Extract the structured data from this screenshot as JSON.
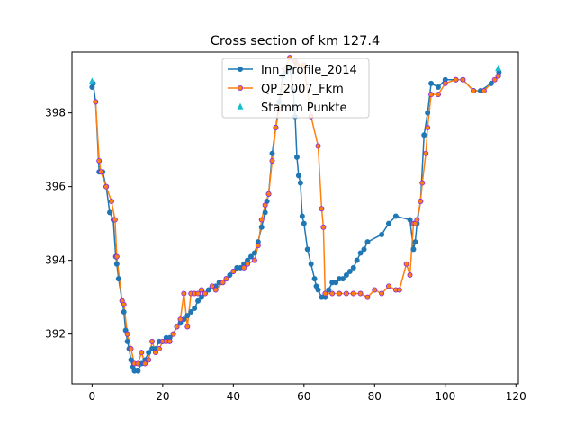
{
  "chart_data": {
    "type": "line",
    "title": "Cross section of km 127.4",
    "xlabel": "",
    "ylabel": "",
    "xlim": [
      -5.7,
      120.7
    ],
    "ylim": [
      390.65,
      399.65
    ],
    "xticks": [
      0,
      20,
      40,
      60,
      80,
      100,
      120
    ],
    "xtick_labels": [
      "0",
      "20",
      "40",
      "60",
      "80",
      "100",
      "120"
    ],
    "yticks": [
      392,
      394,
      396,
      398
    ],
    "ytick_labels": [
      "392",
      "394",
      "396",
      "398"
    ],
    "grid": false,
    "legend_position": "top-center",
    "series": [
      {
        "name": "Inn_Profile_2014",
        "color": "#1f77b4",
        "marker": "circle",
        "points": [
          [
            0.0,
            398.7
          ],
          [
            0.3,
            398.8
          ],
          [
            1.0,
            398.3
          ],
          [
            2.0,
            396.4
          ],
          [
            3.0,
            396.4
          ],
          [
            4.0,
            396.0
          ],
          [
            5.0,
            395.3
          ],
          [
            6.0,
            395.1
          ],
          [
            6.7,
            394.1
          ],
          [
            7.0,
            393.9
          ],
          [
            7.5,
            393.5
          ],
          [
            8.5,
            392.9
          ],
          [
            9.0,
            392.6
          ],
          [
            9.5,
            392.1
          ],
          [
            10.0,
            391.8
          ],
          [
            10.5,
            391.6
          ],
          [
            11.0,
            391.3
          ],
          [
            11.5,
            391.1
          ],
          [
            12.0,
            391.0
          ],
          [
            13.0,
            391.0
          ],
          [
            14.0,
            391.2
          ],
          [
            15.0,
            391.3
          ],
          [
            16.0,
            391.5
          ],
          [
            17.0,
            391.6
          ],
          [
            18.0,
            391.6
          ],
          [
            19.0,
            391.8
          ],
          [
            20.0,
            391.8
          ],
          [
            21.0,
            391.9
          ],
          [
            22.0,
            391.9
          ],
          [
            23.0,
            392.0
          ],
          [
            24.0,
            392.2
          ],
          [
            25.0,
            392.3
          ],
          [
            26.0,
            392.4
          ],
          [
            27.0,
            392.5
          ],
          [
            28.0,
            392.6
          ],
          [
            29.0,
            392.7
          ],
          [
            30.0,
            392.9
          ],
          [
            31.0,
            393.0
          ],
          [
            32.0,
            393.1
          ],
          [
            33.0,
            393.2
          ],
          [
            34.0,
            393.3
          ],
          [
            35.0,
            393.3
          ],
          [
            36.0,
            393.4
          ],
          [
            37.0,
            393.4
          ],
          [
            38.0,
            393.5
          ],
          [
            39.0,
            393.6
          ],
          [
            40.0,
            393.7
          ],
          [
            41.0,
            393.8
          ],
          [
            42.0,
            393.8
          ],
          [
            43.0,
            393.9
          ],
          [
            44.0,
            394.0
          ],
          [
            45.0,
            394.1
          ],
          [
            46.0,
            394.2
          ],
          [
            47.0,
            394.5
          ],
          [
            48.0,
            394.9
          ],
          [
            49.0,
            395.3
          ],
          [
            49.5,
            395.6
          ],
          [
            50.0,
            395.8
          ],
          [
            51.0,
            396.9
          ],
          [
            52.0,
            397.6
          ],
          [
            53.0,
            398.3
          ],
          [
            54.0,
            399.0
          ],
          [
            55.0,
            399.1
          ],
          [
            56.0,
            399.2
          ],
          [
            57.0,
            398.6
          ],
          [
            57.5,
            397.9
          ],
          [
            58.0,
            396.8
          ],
          [
            58.5,
            396.3
          ],
          [
            59.0,
            396.1
          ],
          [
            59.5,
            395.2
          ],
          [
            60.0,
            395.0
          ],
          [
            61.0,
            394.3
          ],
          [
            62.0,
            393.9
          ],
          [
            63.0,
            393.5
          ],
          [
            63.5,
            393.3
          ],
          [
            64.0,
            393.2
          ],
          [
            65.0,
            393.0
          ],
          [
            66.0,
            393.0
          ],
          [
            67.0,
            393.2
          ],
          [
            68.0,
            393.4
          ],
          [
            69.0,
            393.4
          ],
          [
            70.0,
            393.5
          ],
          [
            71.0,
            393.5
          ],
          [
            72.0,
            393.6
          ],
          [
            73.0,
            393.7
          ],
          [
            74.0,
            393.8
          ],
          [
            75.0,
            394.0
          ],
          [
            76.0,
            394.2
          ],
          [
            77.0,
            394.3
          ],
          [
            78.0,
            394.5
          ],
          [
            82.0,
            394.7
          ],
          [
            84.0,
            395.0
          ],
          [
            86.0,
            395.2
          ],
          [
            90.0,
            395.1
          ],
          [
            91.0,
            394.3
          ],
          [
            91.5,
            394.5
          ],
          [
            92.0,
            395.0
          ],
          [
            93.0,
            395.6
          ],
          [
            94.0,
            397.4
          ],
          [
            95.0,
            398.0
          ],
          [
            96.0,
            398.8
          ],
          [
            98.0,
            398.7
          ],
          [
            100.0,
            398.9
          ],
          [
            103.0,
            398.9
          ],
          [
            105.0,
            398.9
          ],
          [
            108.0,
            398.6
          ],
          [
            110.0,
            398.6
          ],
          [
            113.0,
            398.8
          ],
          [
            115.0,
            399.0
          ],
          [
            115.2,
            399.1
          ]
        ]
      },
      {
        "name": "QP_2007_Fkm",
        "color": "#ff7f0e",
        "marker": "circle",
        "points": [
          [
            1.0,
            398.3
          ],
          [
            2.0,
            396.7
          ],
          [
            2.5,
            396.4
          ],
          [
            4.0,
            396.0
          ],
          [
            5.5,
            395.6
          ],
          [
            6.5,
            395.1
          ],
          [
            7.0,
            394.1
          ],
          [
            8.5,
            392.9
          ],
          [
            9.0,
            392.8
          ],
          [
            10.0,
            392.0
          ],
          [
            11.0,
            391.6
          ],
          [
            12.0,
            391.2
          ],
          [
            13.0,
            391.2
          ],
          [
            14.0,
            391.5
          ],
          [
            15.0,
            391.2
          ],
          [
            16.0,
            391.3
          ],
          [
            17.0,
            391.8
          ],
          [
            18.0,
            391.5
          ],
          [
            19.0,
            391.6
          ],
          [
            20.0,
            391.8
          ],
          [
            21.0,
            391.8
          ],
          [
            22.0,
            391.8
          ],
          [
            23.0,
            392.0
          ],
          [
            24.0,
            392.2
          ],
          [
            25.0,
            392.4
          ],
          [
            26.0,
            393.1
          ],
          [
            27.0,
            392.2
          ],
          [
            28.0,
            393.1
          ],
          [
            29.0,
            393.1
          ],
          [
            30.0,
            393.1
          ],
          [
            31.0,
            393.2
          ],
          [
            32.0,
            393.1
          ],
          [
            34.0,
            393.3
          ],
          [
            35.0,
            393.2
          ],
          [
            37.0,
            393.4
          ],
          [
            38.0,
            393.5
          ],
          [
            40.0,
            393.7
          ],
          [
            43.0,
            393.8
          ],
          [
            44.0,
            393.9
          ],
          [
            46.0,
            394.0
          ],
          [
            47.0,
            394.4
          ],
          [
            48.0,
            395.1
          ],
          [
            49.0,
            395.5
          ],
          [
            50.0,
            395.8
          ],
          [
            51.0,
            396.7
          ],
          [
            52.0,
            397.6
          ],
          [
            53.0,
            398.1
          ],
          [
            54.5,
            399.2
          ],
          [
            56.0,
            399.5
          ],
          [
            57.5,
            399.4
          ],
          [
            58.0,
            399.3
          ],
          [
            60.0,
            399.3
          ],
          [
            62.0,
            397.9
          ],
          [
            64.0,
            397.1
          ],
          [
            65.0,
            395.4
          ],
          [
            65.5,
            394.9
          ],
          [
            66.0,
            393.1
          ],
          [
            68.0,
            393.1
          ],
          [
            70.0,
            393.1
          ],
          [
            72.0,
            393.1
          ],
          [
            74.0,
            393.1
          ],
          [
            76.0,
            393.1
          ],
          [
            78.0,
            393.0
          ],
          [
            80.0,
            393.2
          ],
          [
            82.0,
            393.1
          ],
          [
            84.0,
            393.3
          ],
          [
            86.0,
            393.2
          ],
          [
            87.0,
            393.2
          ],
          [
            89.0,
            393.9
          ],
          [
            90.0,
            393.6
          ],
          [
            91.0,
            395.0
          ],
          [
            91.5,
            395.0
          ],
          [
            92.0,
            395.1
          ],
          [
            93.0,
            395.6
          ],
          [
            93.5,
            396.1
          ],
          [
            94.5,
            396.9
          ],
          [
            95.0,
            397.6
          ],
          [
            96.0,
            398.5
          ],
          [
            98.0,
            398.5
          ],
          [
            100.0,
            398.8
          ],
          [
            103.0,
            398.9
          ],
          [
            105.0,
            398.9
          ],
          [
            108.0,
            398.6
          ],
          [
            111.0,
            398.6
          ],
          [
            114.0,
            398.9
          ],
          [
            115.0,
            399.0
          ]
        ]
      },
      {
        "name": "Stamm Punkte",
        "color": "#17becf",
        "marker": "triangle",
        "points": [
          [
            0.0,
            398.85
          ],
          [
            115.0,
            399.2
          ]
        ]
      }
    ]
  }
}
